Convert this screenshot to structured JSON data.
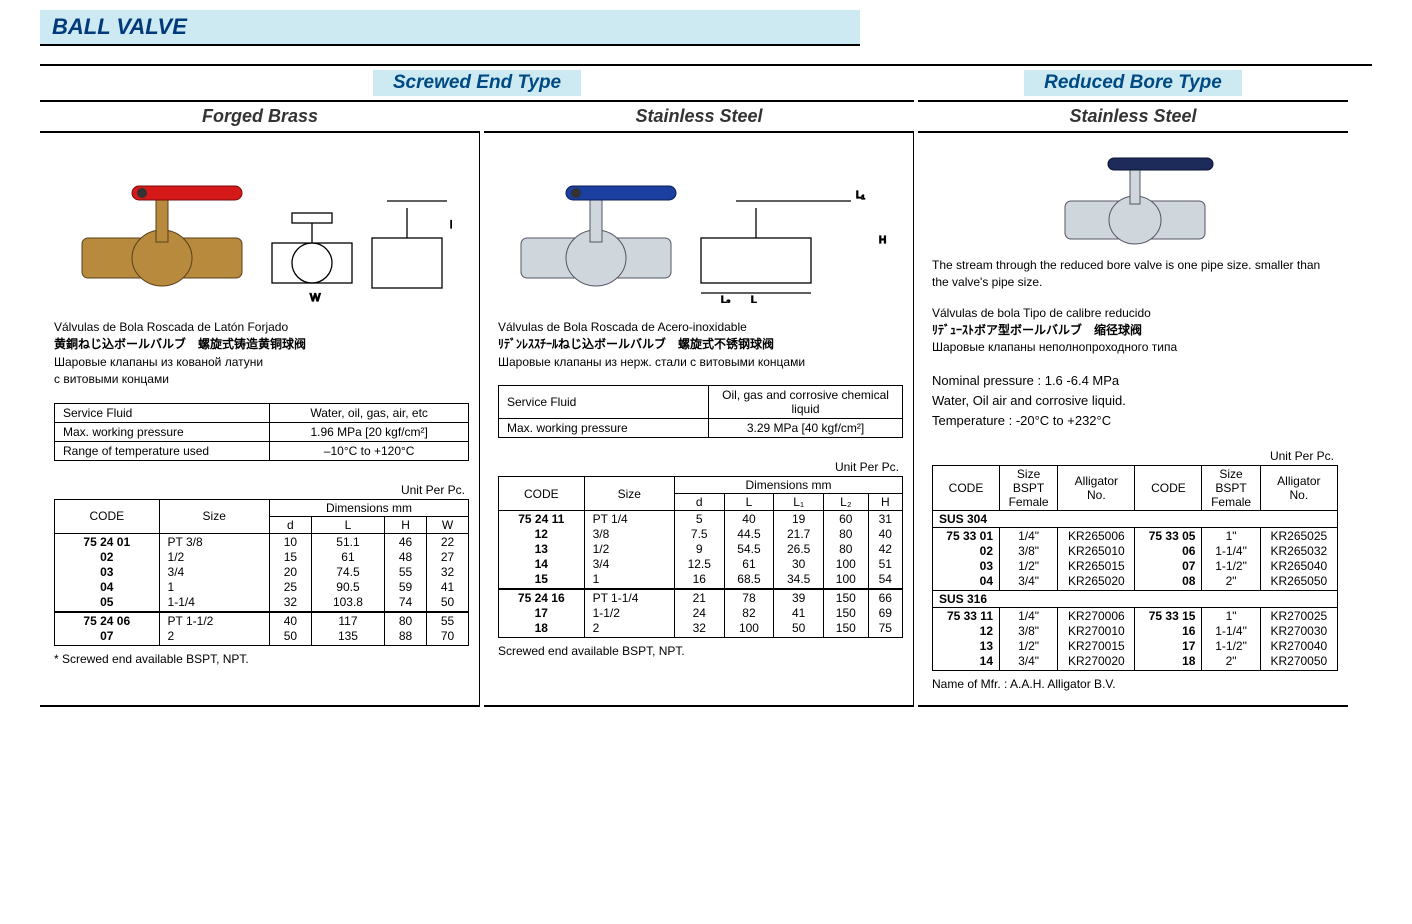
{
  "page_title": "BALL VALVE",
  "types": {
    "screwed": "Screwed End Type",
    "reduced": "Reduced Bore Type"
  },
  "columns": {
    "brass": {
      "material": "Forged Brass",
      "handle_color": "#d51818",
      "body_color": "#b78a3e",
      "desc_es": "Válvulas de Bola Roscada de Latón Forjado",
      "desc_cjk": "黄銅ねじ込ボールバルブ　螺旋式铸造黄铜球阀",
      "desc_ru1": "Шаровые клапаны из кованой латуни",
      "desc_ru2": "с витовыми концами",
      "spec": [
        [
          "Service Fluid",
          "Water, oil, gas, air, etc"
        ],
        [
          "Max. working pressure",
          "1.96 MPa [20 kgf/cm²]"
        ],
        [
          "Range of temperature used",
          "–10°C to +120°C"
        ]
      ],
      "unit_label": "Unit Per Pc.",
      "dim_headers": [
        "CODE",
        "Size",
        "d",
        "L",
        "H",
        "W"
      ],
      "dim_super": "Dimensions mm",
      "groups": [
        {
          "codes": [
            "75 24 01",
            "02",
            "03",
            "04",
            "05"
          ],
          "sizes": [
            "PT  3/8",
            "1/2",
            "3/4",
            "1",
            "1-1/4"
          ],
          "d": [
            "10",
            "15",
            "20",
            "25",
            "32"
          ],
          "L": [
            "51.1",
            "61",
            "74.5",
            "90.5",
            "103.8"
          ],
          "H": [
            "46",
            "48",
            "55",
            "59",
            "74"
          ],
          "W": [
            "22",
            "27",
            "32",
            "41",
            "50"
          ]
        },
        {
          "codes": [
            "75 24 06",
            "07"
          ],
          "sizes": [
            "PT  1-1/2",
            "2"
          ],
          "d": [
            "40",
            "50"
          ],
          "L": [
            "117",
            "135"
          ],
          "H": [
            "80",
            "88"
          ],
          "W": [
            "55",
            "70"
          ]
        }
      ],
      "footnote": "* Screwed end available BSPT, NPT."
    },
    "ss": {
      "material": "Stainless Steel",
      "handle_color": "#1b3fa0",
      "body_color": "#cfd6dc",
      "desc_es": "Válvulas de Bola Roscada de Acero-inoxidable",
      "desc_cjk": "ﾘﾃﾞﾝﾚｽｽﾁｰﾙねじ込ボールバルブ　螺旋式不锈钢球阀",
      "desc_ru": "Шаровые клапаны из нерж. стали с витовыми концами",
      "spec": [
        [
          "Service Fluid",
          "Oil, gas and corrosive chemical liquid"
        ],
        [
          "Max. working pressure",
          "3.29 MPa [40 kgf/cm²]"
        ]
      ],
      "unit_label": "Unit Per Pc.",
      "dim_headers": [
        "CODE",
        "Size",
        "d",
        "L",
        "L₁",
        "L₂",
        "H"
      ],
      "dim_super": "Dimensions mm",
      "groups": [
        {
          "codes": [
            "75 24 11",
            "12",
            "13",
            "14",
            "15"
          ],
          "sizes": [
            "PT  1/4",
            "3/8",
            "1/2",
            "3/4",
            "1"
          ],
          "d": [
            "5",
            "7.5",
            "9",
            "12.5",
            "16"
          ],
          "L": [
            "40",
            "44.5",
            "54.5",
            "61",
            "68.5"
          ],
          "L1": [
            "19",
            "21.7",
            "26.5",
            "30",
            "34.5"
          ],
          "L2": [
            "60",
            "80",
            "80",
            "100",
            "100"
          ],
          "H": [
            "31",
            "40",
            "42",
            "51",
            "54"
          ]
        },
        {
          "codes": [
            "75 24 16",
            "17",
            "18"
          ],
          "sizes": [
            "PT  1-1/4",
            "1-1/2",
            "2"
          ],
          "d": [
            "21",
            "24",
            "32"
          ],
          "L": [
            "78",
            "82",
            "100"
          ],
          "L1": [
            "39",
            "41",
            "50"
          ],
          "L2": [
            "150",
            "150",
            "150"
          ],
          "H": [
            "66",
            "69",
            "75"
          ]
        }
      ],
      "footnote": "Screwed end available BSPT, NPT."
    },
    "rb": {
      "material": "Stainless Steel",
      "handle_color": "#1c2b5a",
      "body_color": "#cfd6dc",
      "stream_note": "The stream through the reduced bore valve is one pipe size. smaller than the valve's pipe size.",
      "desc_es": "Válvulas de bola  Tipo de calibre reducido",
      "desc_cjk": "ﾘﾃﾞｭｰｽﾄボア型ボールバルブ　缩径球阀",
      "desc_ru": "Шаровые клапаны  неполнопроходного типа",
      "spec_lines": [
        "Nominal pressure : 1.6 -6.4 MPa",
        "Water, Oil air and corrosive liquid.",
        "Temperature : -20°C to +232°C"
      ],
      "unit_label": "Unit Per Pc.",
      "headers": [
        "CODE",
        "Size BSPT Female",
        "Alligator No.",
        "CODE",
        "Size BSPT Female",
        "Alligator No."
      ],
      "sections": [
        {
          "name": "SUS 304",
          "left": [
            [
              "75 33 01",
              "1/4\"",
              "KR265006"
            ],
            [
              "02",
              "3/8\"",
              "KR265010"
            ],
            [
              "03",
              "1/2\"",
              "KR265015"
            ],
            [
              "04",
              "3/4\"",
              "KR265020"
            ]
          ],
          "right": [
            [
              "75 33 05",
              "1\"",
              "KR265025"
            ],
            [
              "06",
              "1-1/4\"",
              "KR265032"
            ],
            [
              "07",
              "1-1/2\"",
              "KR265040"
            ],
            [
              "08",
              "2\"",
              "KR265050"
            ]
          ]
        },
        {
          "name": "SUS 316",
          "left": [
            [
              "75 33 11",
              "1/4\"",
              "KR270006"
            ],
            [
              "12",
              "3/8\"",
              "KR270010"
            ],
            [
              "13",
              "1/2\"",
              "KR270015"
            ],
            [
              "14",
              "3/4\"",
              "KR270020"
            ]
          ],
          "right": [
            [
              "75 33 15",
              "1\"",
              "KR270025"
            ],
            [
              "16",
              "1-1/4\"",
              "KR270030"
            ],
            [
              "17",
              "1-1/2\"",
              "KR270040"
            ],
            [
              "18",
              "2\"",
              "KR270050"
            ]
          ]
        }
      ],
      "mfr": "Name of Mfr. : A.A.H. Alligator B.V."
    }
  }
}
